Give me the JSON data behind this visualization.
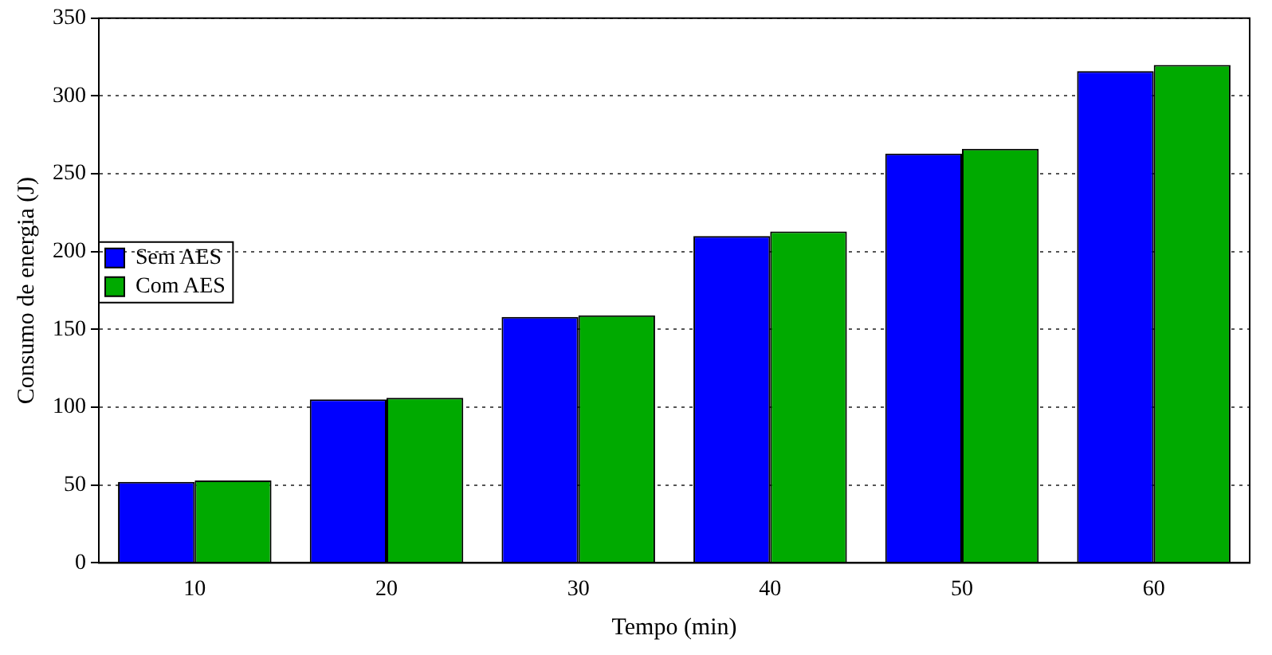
{
  "chart_data": {
    "type": "bar",
    "xlabel": "Tempo (min)",
    "ylabel": "Consumo de energia (J)",
    "categories": [
      "10",
      "20",
      "30",
      "40",
      "50",
      "60"
    ],
    "series": [
      {
        "name": "Sem AES",
        "color": "#0000ff",
        "values": [
          52,
          105,
          158,
          210,
          263,
          316
        ]
      },
      {
        "name": "Com AES",
        "color": "#00aa00",
        "values": [
          53,
          106,
          159,
          213,
          266,
          320
        ]
      }
    ],
    "ylim": [
      0,
      350
    ],
    "yticks": [
      0,
      50,
      100,
      150,
      200,
      250,
      300,
      350
    ],
    "grid": "y",
    "legend": "top"
  }
}
